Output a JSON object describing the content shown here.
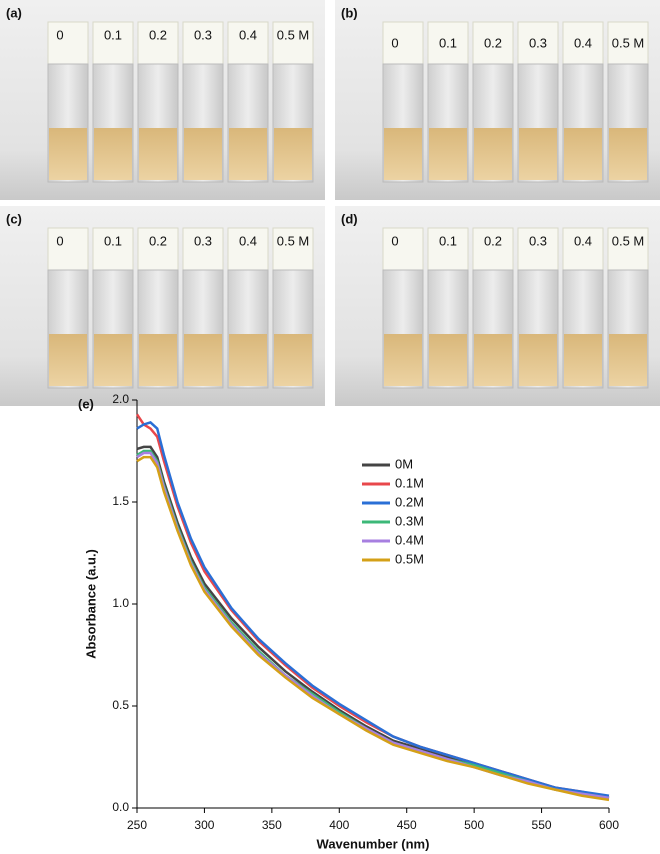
{
  "panels": [
    {
      "label": "(a)",
      "concentrations": [
        "0",
        "0.1",
        "0.2",
        "0.3",
        "0.4",
        "0.5 M"
      ]
    },
    {
      "label": "(b)",
      "concentrations": [
        "0",
        "0.1",
        "0.2",
        "0.3",
        "0.4",
        "0.5 M"
      ]
    },
    {
      "label": "(c)",
      "concentrations": [
        "0",
        "0.1",
        "0.2",
        "0.3",
        "0.4",
        "0.5 M"
      ]
    },
    {
      "label": "(d)",
      "concentrations": [
        "0",
        "0.1",
        "0.2",
        "0.3",
        "0.4",
        "0.5 M"
      ]
    }
  ],
  "chart_data": {
    "type": "line",
    "panel_label": "(e)",
    "x_label": "Wavenumber (nm)",
    "y_label": "Absorbance (a.u.)",
    "x": [
      250,
      255,
      260,
      265,
      270,
      280,
      290,
      300,
      320,
      340,
      360,
      380,
      400,
      420,
      440,
      460,
      480,
      500,
      520,
      540,
      560,
      580,
      600
    ],
    "series": [
      {
        "name": "0M",
        "color": "#444444",
        "values": [
          1.76,
          1.77,
          1.77,
          1.72,
          1.6,
          1.4,
          1.23,
          1.1,
          0.93,
          0.79,
          0.67,
          0.57,
          0.48,
          0.4,
          0.33,
          0.29,
          0.25,
          0.21,
          0.17,
          0.13,
          0.1,
          0.07,
          0.05
        ]
      },
      {
        "name": "0.1M",
        "color": "#e8474b",
        "values": [
          1.93,
          1.88,
          1.86,
          1.82,
          1.7,
          1.48,
          1.3,
          1.16,
          0.97,
          0.82,
          0.7,
          0.59,
          0.5,
          0.42,
          0.35,
          0.3,
          0.26,
          0.22,
          0.18,
          0.14,
          0.1,
          0.08,
          0.05
        ]
      },
      {
        "name": "0.2M",
        "color": "#2a6fd6",
        "values": [
          1.86,
          1.88,
          1.89,
          1.86,
          1.73,
          1.5,
          1.32,
          1.18,
          0.98,
          0.83,
          0.71,
          0.6,
          0.51,
          0.43,
          0.35,
          0.3,
          0.26,
          0.22,
          0.18,
          0.14,
          0.1,
          0.08,
          0.06
        ]
      },
      {
        "name": "0.3M",
        "color": "#3cb878",
        "values": [
          1.73,
          1.75,
          1.75,
          1.7,
          1.58,
          1.38,
          1.21,
          1.08,
          0.91,
          0.77,
          0.65,
          0.56,
          0.47,
          0.39,
          0.32,
          0.28,
          0.24,
          0.21,
          0.17,
          0.13,
          0.09,
          0.07,
          0.05
        ]
      },
      {
        "name": "0.4M",
        "color": "#a77fe0",
        "values": [
          1.72,
          1.74,
          1.74,
          1.69,
          1.57,
          1.37,
          1.2,
          1.07,
          0.9,
          0.76,
          0.65,
          0.55,
          0.46,
          0.39,
          0.32,
          0.28,
          0.24,
          0.2,
          0.16,
          0.13,
          0.09,
          0.07,
          0.05
        ]
      },
      {
        "name": "0.5M",
        "color": "#d4a017",
        "values": [
          1.7,
          1.72,
          1.72,
          1.67,
          1.55,
          1.36,
          1.19,
          1.06,
          0.89,
          0.75,
          0.64,
          0.54,
          0.46,
          0.38,
          0.31,
          0.27,
          0.23,
          0.2,
          0.16,
          0.12,
          0.09,
          0.06,
          0.04
        ]
      }
    ],
    "xlim": [
      250,
      600
    ],
    "ylim": [
      0,
      2.0
    ],
    "xticks": [
      250,
      300,
      350,
      400,
      450,
      500,
      550,
      600
    ],
    "yticks": [
      {
        "value": 0,
        "label": "0.0"
      },
      0.5,
      {
        "value": 1,
        "label": "1.0"
      },
      1.5,
      {
        "value": 2,
        "label": "2.0"
      }
    ]
  }
}
